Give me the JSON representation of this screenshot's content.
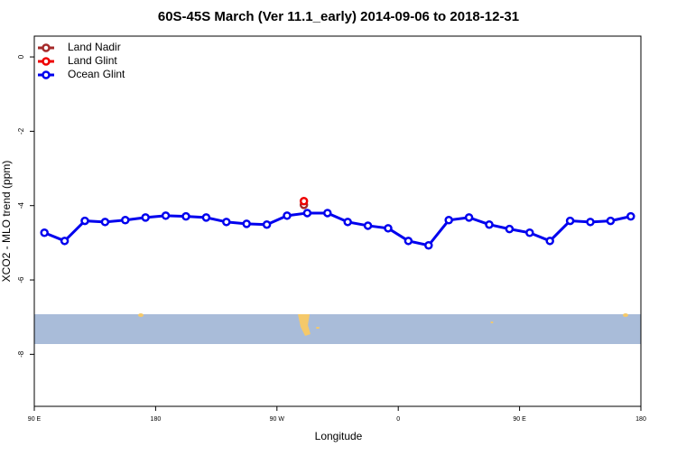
{
  "chart_data": {
    "type": "line",
    "title": "60S-45S March (Ver 11.1_early)   2014-09-06 to 2018-12-31",
    "x_label": "Longitude",
    "y_label": "XCO2 - MLO trend (ppm)",
    "xlim": [
      90,
      540
    ],
    "ylim": [
      -9.4,
      0.56
    ],
    "xticks": [
      {
        "value": 90,
        "label": "90 E"
      },
      {
        "value": 180,
        "label": "180"
      },
      {
        "value": 270,
        "label": "90 W"
      },
      {
        "value": 360,
        "label": "0"
      },
      {
        "value": 450,
        "label": "90 E"
      },
      {
        "value": 540,
        "label": "180"
      }
    ],
    "yticks": [
      0,
      -2,
      -4,
      -6,
      -8
    ],
    "legend": "top-left",
    "series": [
      {
        "name": "Land Nadir",
        "color": "#a52a2a",
        "x": [
          290
        ],
        "values": [
          -3.98
        ]
      },
      {
        "name": "Land Glint",
        "color": "#ee0000",
        "x": [
          290
        ],
        "values": [
          -3.88
        ]
      },
      {
        "name": "Ocean Glint",
        "color": "#0000ee",
        "x": [
          97.5,
          112.5,
          127.5,
          142.5,
          157.5,
          172.5,
          187.5,
          202.5,
          217.5,
          232.5,
          247.5,
          262.5,
          277.5,
          292.5,
          307.5,
          322.5,
          337.5,
          352.5,
          367.5,
          382.5,
          397.5,
          412.5,
          427.5,
          442.5,
          457.5,
          472.5,
          487.5,
          502.5,
          517.5,
          532.5
        ],
        "values": [
          -4.73,
          -4.95,
          -4.41,
          -4.44,
          -4.39,
          -4.32,
          -4.27,
          -4.29,
          -4.32,
          -4.44,
          -4.49,
          -4.51,
          -4.27,
          -4.2,
          -4.2,
          -4.44,
          -4.54,
          -4.61,
          -4.95,
          -5.07,
          -4.39,
          -4.32,
          -4.51,
          -4.63,
          -4.73,
          -4.95,
          -4.41,
          -4.44,
          -4.41,
          -4.29
        ]
      }
    ]
  }
}
